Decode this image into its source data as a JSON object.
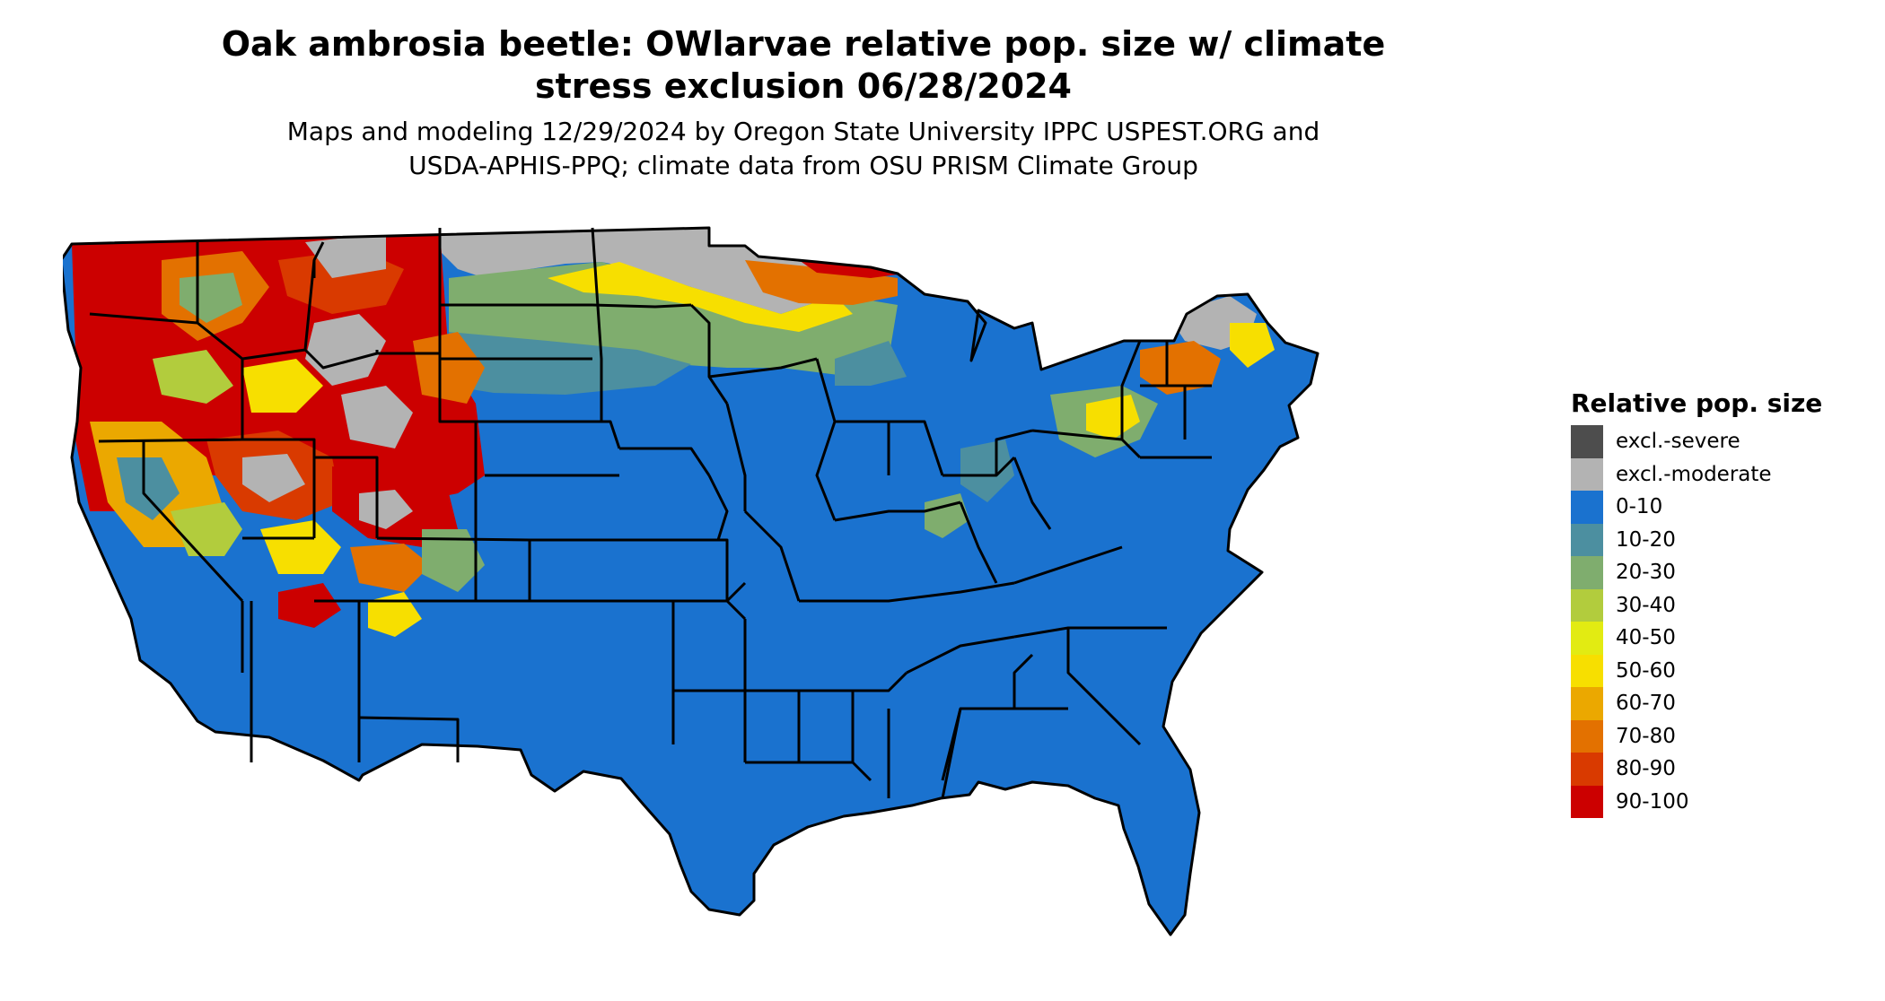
{
  "title": "Oak ambrosia beetle: OWlarvae relative pop. size w/ climate\nstress exclusion 06/28/2024",
  "subtitle": "Maps and modeling 12/29/2024 by Oregon State University IPPC USPEST.ORG and\nUSDA-APHIS-PPQ; climate data from OSU PRISM Climate Group",
  "legend": {
    "title": "Relative pop. size",
    "items": [
      {
        "label": "excl.-severe",
        "color": "#4d4d4d"
      },
      {
        "label": "excl.-moderate",
        "color": "#b3b3b3"
      },
      {
        "label": "0-10",
        "color": "#1a72cf"
      },
      {
        "label": "10-20",
        "color": "#4c8fa0"
      },
      {
        "label": "20-30",
        "color": "#7fad6e"
      },
      {
        "label": "30-40",
        "color": "#b2cc3d"
      },
      {
        "label": "40-50",
        "color": "#e2eb12"
      },
      {
        "label": "50-60",
        "color": "#f7df00"
      },
      {
        "label": "60-70",
        "color": "#eba800"
      },
      {
        "label": "70-80",
        "color": "#e37100"
      },
      {
        "label": "80-90",
        "color": "#d93a00"
      },
      {
        "label": "90-100",
        "color": "#cc0000"
      }
    ]
  }
}
